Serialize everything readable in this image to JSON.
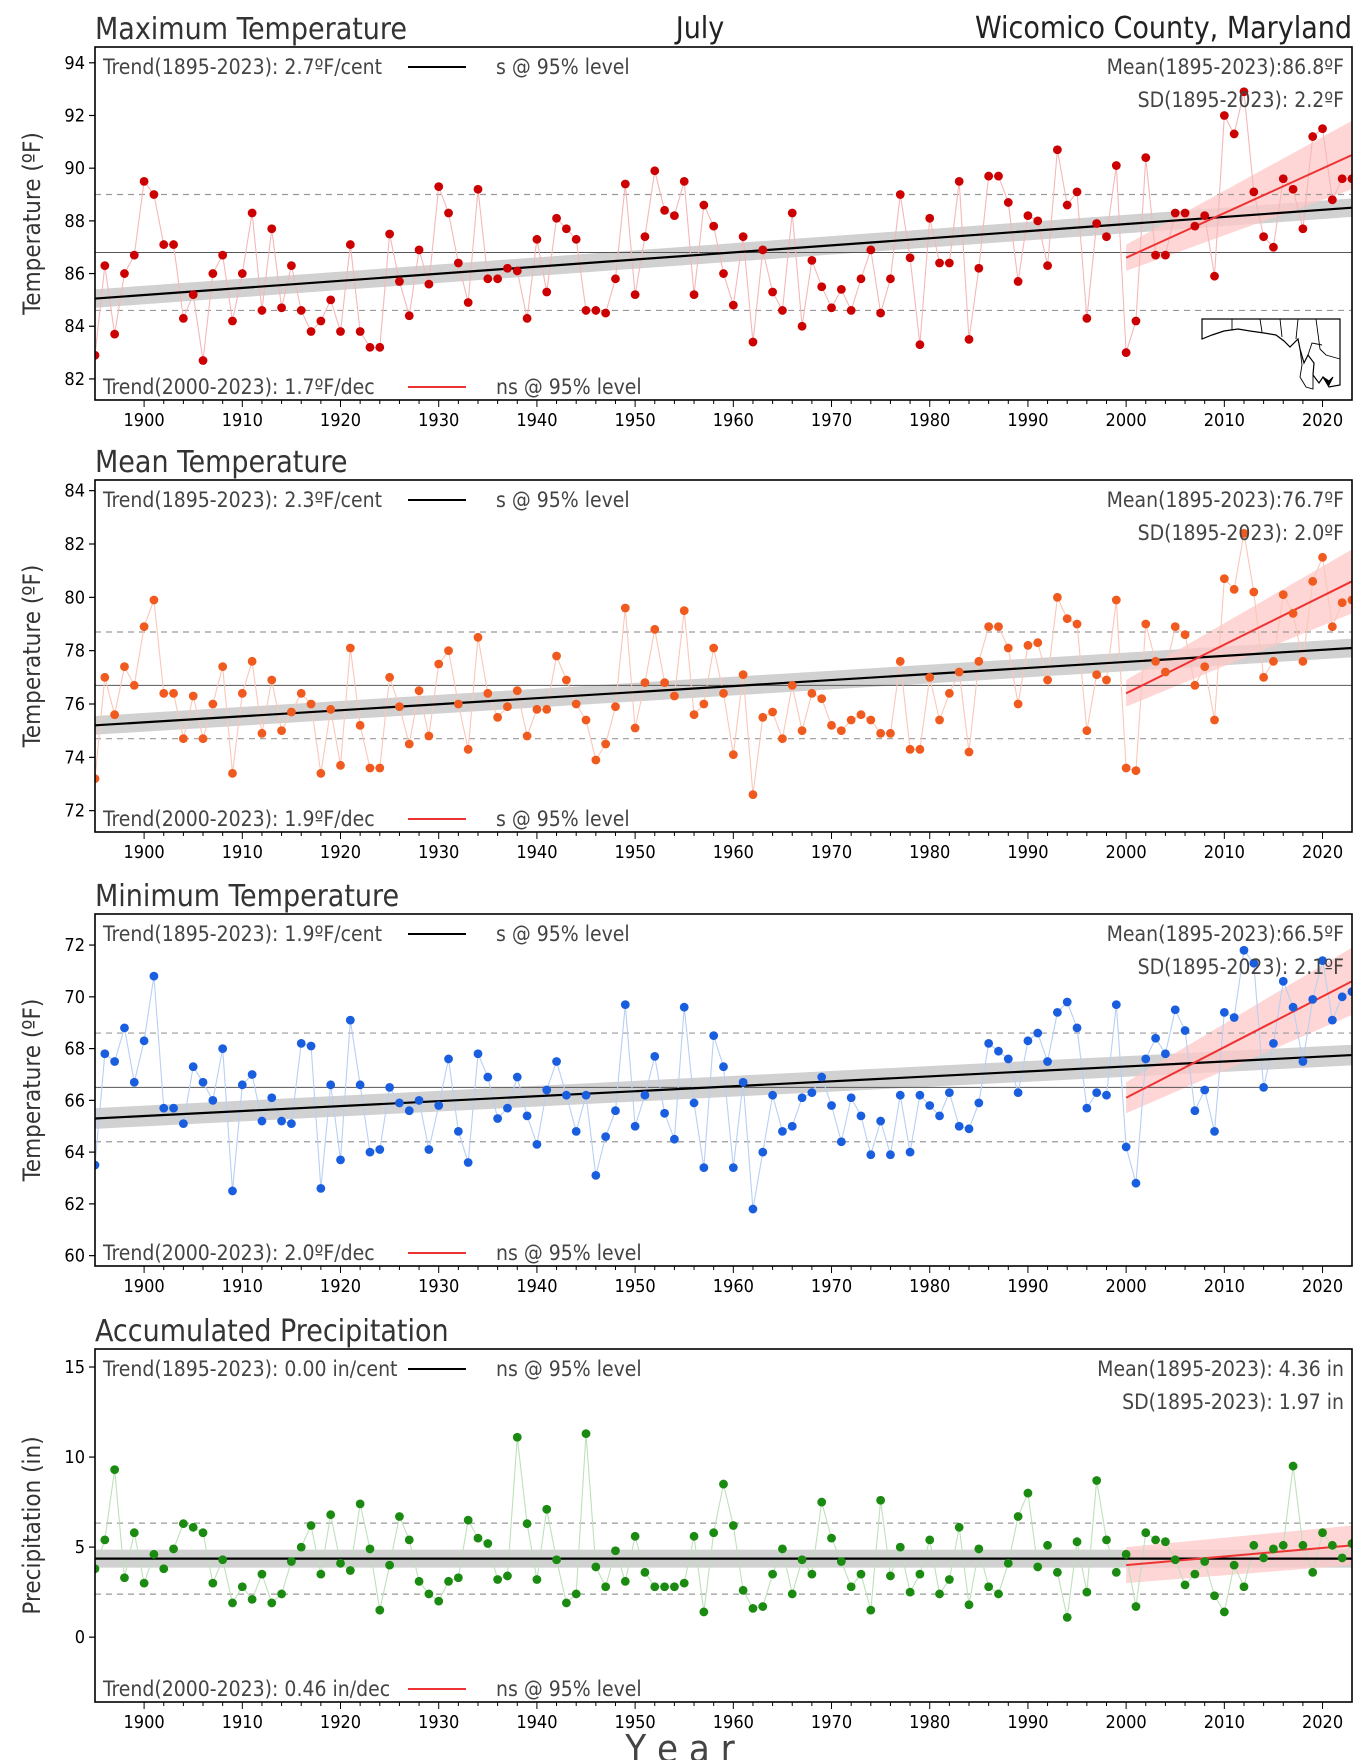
{
  "header": {
    "month": "July",
    "region": "Wicomico County, Maryland"
  },
  "colors": {
    "long_trend": "#000000",
    "short_trend": "#ee3333",
    "band_long": "#cccccc",
    "band_short": "#ffc8c8",
    "grid_dash": "#999999"
  },
  "xaxis": {
    "label": "Y e a r",
    "ticks": [
      1900,
      1910,
      1920,
      1930,
      1940,
      1950,
      1960,
      1970,
      1980,
      1990,
      2000,
      2010,
      2020
    ],
    "xlim": [
      1895,
      2023
    ]
  },
  "chart_data": [
    {
      "type": "scatter",
      "title": "Maximum Temperature",
      "ylabel": "Temperature (ºF)",
      "ylim": [
        81.2,
        94.6
      ],
      "yticks": [
        82,
        84,
        86,
        88,
        90,
        92,
        94
      ],
      "color": "#cc0000",
      "line_color": "#f4b8b8",
      "mean": 86.8,
      "sd": 2.2,
      "mean_text": "Mean(1895-2023):86.8ºF",
      "sd_text": "SD(1895-2023): 2.2ºF",
      "trend_long": {
        "text": "Trend(1895-2023):  2.7ºF/cent",
        "sig": "s @ 95% level",
        "start": 85.05,
        "end": 88.5,
        "band": 0.35
      },
      "trend_short": {
        "text": "Trend(2000-2023):  1.7ºF/dec",
        "sig": "ns @ 95% level",
        "start": 86.6,
        "end": 90.5,
        "band_start": 0.5,
        "band_end": 1.3
      },
      "x": [
        1895,
        1896,
        1897,
        1898,
        1899,
        1900,
        1901,
        1902,
        1903,
        1904,
        1905,
        1906,
        1907,
        1908,
        1909,
        1910,
        1911,
        1912,
        1913,
        1914,
        1915,
        1916,
        1917,
        1918,
        1919,
        1920,
        1921,
        1922,
        1923,
        1924,
        1925,
        1926,
        1927,
        1928,
        1929,
        1930,
        1931,
        1932,
        1933,
        1934,
        1935,
        1936,
        1937,
        1938,
        1939,
        1940,
        1941,
        1942,
        1943,
        1944,
        1945,
        1946,
        1947,
        1948,
        1949,
        1950,
        1951,
        1952,
        1953,
        1954,
        1955,
        1956,
        1957,
        1958,
        1959,
        1960,
        1961,
        1962,
        1963,
        1964,
        1965,
        1966,
        1967,
        1968,
        1969,
        1970,
        1971,
        1972,
        1973,
        1974,
        1975,
        1976,
        1977,
        1978,
        1979,
        1980,
        1981,
        1982,
        1983,
        1984,
        1985,
        1986,
        1987,
        1988,
        1989,
        1990,
        1991,
        1992,
        1993,
        1994,
        1995,
        1996,
        1997,
        1998,
        1999,
        2000,
        2001,
        2002,
        2003,
        2004,
        2005,
        2006,
        2007,
        2008,
        2009,
        2010,
        2011,
        2012,
        2013,
        2014,
        2015,
        2016,
        2017,
        2018,
        2019,
        2020,
        2021,
        2022,
        2023
      ],
      "values": [
        82.9,
        86.3,
        83.7,
        86.0,
        86.7,
        89.5,
        89.0,
        87.1,
        87.1,
        84.3,
        85.2,
        82.7,
        86.0,
        86.7,
        84.2,
        86.0,
        88.3,
        84.6,
        87.7,
        84.7,
        86.3,
        84.6,
        83.8,
        84.2,
        85.0,
        83.8,
        87.1,
        83.8,
        83.2,
        83.2,
        87.5,
        85.7,
        84.4,
        86.9,
        85.6,
        89.3,
        88.3,
        86.4,
        84.9,
        89.2,
        85.8,
        85.8,
        86.2,
        86.1,
        84.3,
        87.3,
        85.3,
        88.1,
        87.7,
        87.3,
        84.6,
        84.6,
        84.5,
        85.8,
        89.4,
        85.2,
        87.4,
        89.9,
        88.4,
        88.2,
        89.5,
        85.2,
        88.6,
        87.8,
        86.0,
        84.8,
        87.4,
        83.4,
        86.9,
        85.3,
        84.6,
        88.3,
        84.0,
        86.5,
        85.5,
        84.7,
        85.4,
        84.6,
        85.8,
        86.9,
        84.5,
        85.8,
        89.0,
        86.6,
        83.3,
        88.1,
        86.4,
        86.4,
        89.5,
        83.5,
        86.2,
        89.7,
        89.7,
        88.7,
        85.7,
        88.2,
        88.0,
        86.3,
        90.7,
        88.6,
        89.1,
        84.3,
        87.9,
        87.4,
        90.1,
        83.0,
        84.2,
        90.4,
        86.7,
        86.7,
        88.3,
        88.3,
        87.8,
        88.2,
        85.9,
        92.0,
        91.3,
        92.9,
        89.1,
        87.4,
        87.0,
        89.6,
        89.2,
        87.7,
        91.2,
        91.5,
        88.8,
        89.6,
        89.6
      ]
    },
    {
      "type": "scatter",
      "title": "Mean Temperature",
      "ylabel": "Temperature (ºF)",
      "ylim": [
        71.2,
        84.4
      ],
      "yticks": [
        72,
        74,
        76,
        78,
        80,
        82,
        84
      ],
      "color": "#f05a1e",
      "line_color": "#f9c8b8",
      "mean": 76.7,
      "sd": 2.0,
      "mean_text": "Mean(1895-2023):76.7ºF",
      "sd_text": "SD(1895-2023): 2.0ºF",
      "trend_long": {
        "text": "Trend(1895-2023):  2.3ºF/cent",
        "sig": "s @ 95% level",
        "start": 75.2,
        "end": 78.1,
        "band": 0.35
      },
      "trend_short": {
        "text": "Trend(2000-2023):  1.9ºF/dec",
        "sig": "s @ 95% level",
        "start": 76.4,
        "end": 80.6,
        "band_start": 0.5,
        "band_end": 1.2
      },
      "x": [
        1895,
        1896,
        1897,
        1898,
        1899,
        1900,
        1901,
        1902,
        1903,
        1904,
        1905,
        1906,
        1907,
        1908,
        1909,
        1910,
        1911,
        1912,
        1913,
        1914,
        1915,
        1916,
        1917,
        1918,
        1919,
        1920,
        1921,
        1922,
        1923,
        1924,
        1925,
        1926,
        1927,
        1928,
        1929,
        1930,
        1931,
        1932,
        1933,
        1934,
        1935,
        1936,
        1937,
        1938,
        1939,
        1940,
        1941,
        1942,
        1943,
        1944,
        1945,
        1946,
        1947,
        1948,
        1949,
        1950,
        1951,
        1952,
        1953,
        1954,
        1955,
        1956,
        1957,
        1958,
        1959,
        1960,
        1961,
        1962,
        1963,
        1964,
        1965,
        1966,
        1967,
        1968,
        1969,
        1970,
        1971,
        1972,
        1973,
        1974,
        1975,
        1976,
        1977,
        1978,
        1979,
        1980,
        1981,
        1982,
        1983,
        1984,
        1985,
        1986,
        1987,
        1988,
        1989,
        1990,
        1991,
        1992,
        1993,
        1994,
        1995,
        1996,
        1997,
        1998,
        1999,
        2000,
        2001,
        2002,
        2003,
        2004,
        2005,
        2006,
        2007,
        2008,
        2009,
        2010,
        2011,
        2012,
        2013,
        2014,
        2015,
        2016,
        2017,
        2018,
        2019,
        2020,
        2021,
        2022,
        2023
      ],
      "values": [
        73.2,
        77.0,
        75.6,
        77.4,
        76.7,
        78.9,
        79.9,
        76.4,
        76.4,
        74.7,
        76.3,
        74.7,
        76.0,
        77.4,
        73.4,
        76.4,
        77.6,
        74.9,
        76.9,
        75.0,
        75.7,
        76.4,
        76.0,
        73.4,
        75.8,
        73.7,
        78.1,
        75.2,
        73.6,
        73.6,
        77.0,
        75.9,
        74.5,
        76.5,
        74.8,
        77.5,
        78.0,
        76.0,
        74.3,
        78.5,
        76.4,
        75.5,
        75.9,
        76.5,
        74.8,
        75.8,
        75.8,
        77.8,
        76.9,
        76.0,
        75.4,
        73.9,
        74.5,
        75.9,
        79.6,
        75.1,
        76.8,
        78.8,
        76.8,
        76.3,
        79.5,
        75.6,
        76.0,
        78.1,
        76.4,
        74.1,
        77.1,
        72.6,
        75.5,
        75.7,
        74.7,
        76.7,
        75.0,
        76.4,
        76.2,
        75.2,
        75.0,
        75.4,
        75.6,
        75.4,
        74.9,
        74.9,
        77.6,
        74.3,
        74.3,
        77.0,
        75.4,
        76.4,
        77.2,
        74.2,
        77.6,
        78.9,
        78.9,
        78.1,
        76.0,
        78.2,
        78.3,
        76.9,
        80.0,
        79.2,
        79.0,
        75.0,
        77.1,
        76.9,
        79.9,
        73.6,
        73.5,
        79.0,
        77.6,
        77.2,
        78.9,
        78.6,
        76.7,
        77.4,
        75.4,
        80.7,
        80.3,
        82.4,
        80.2,
        77.0,
        77.6,
        80.1,
        79.4,
        77.6,
        80.6,
        81.5,
        78.9,
        79.8,
        79.9
      ]
    },
    {
      "type": "scatter",
      "title": "Minimum Temperature",
      "ylabel": "Temperature (ºF)",
      "ylim": [
        59.6,
        73.2
      ],
      "yticks": [
        60,
        62,
        64,
        66,
        68,
        70,
        72
      ],
      "color": "#1a5ee0",
      "line_color": "#b8d0f4",
      "mean": 66.5,
      "sd": 2.1,
      "mean_text": "Mean(1895-2023):66.5ºF",
      "sd_text": "SD(1895-2023): 2.1ºF",
      "trend_long": {
        "text": "Trend(1895-2023):  1.9ºF/cent",
        "sig": "s @ 95% level",
        "start": 65.3,
        "end": 67.75,
        "band": 0.4
      },
      "trend_short": {
        "text": "Trend(2000-2023):  2.0ºF/dec",
        "sig": "ns @ 95% level",
        "start": 66.1,
        "end": 70.6,
        "band_start": 0.6,
        "band_end": 1.3
      },
      "x": [
        1895,
        1896,
        1897,
        1898,
        1899,
        1900,
        1901,
        1902,
        1903,
        1904,
        1905,
        1906,
        1907,
        1908,
        1909,
        1910,
        1911,
        1912,
        1913,
        1914,
        1915,
        1916,
        1917,
        1918,
        1919,
        1920,
        1921,
        1922,
        1923,
        1924,
        1925,
        1926,
        1927,
        1928,
        1929,
        1930,
        1931,
        1932,
        1933,
        1934,
        1935,
        1936,
        1937,
        1938,
        1939,
        1940,
        1941,
        1942,
        1943,
        1944,
        1945,
        1946,
        1947,
        1948,
        1949,
        1950,
        1951,
        1952,
        1953,
        1954,
        1955,
        1956,
        1957,
        1958,
        1959,
        1960,
        1961,
        1962,
        1963,
        1964,
        1965,
        1966,
        1967,
        1968,
        1969,
        1970,
        1971,
        1972,
        1973,
        1974,
        1975,
        1976,
        1977,
        1978,
        1979,
        1980,
        1981,
        1982,
        1983,
        1984,
        1985,
        1986,
        1987,
        1988,
        1989,
        1990,
        1991,
        1992,
        1993,
        1994,
        1995,
        1996,
        1997,
        1998,
        1999,
        2000,
        2001,
        2002,
        2003,
        2004,
        2005,
        2006,
        2007,
        2008,
        2009,
        2010,
        2011,
        2012,
        2013,
        2014,
        2015,
        2016,
        2017,
        2018,
        2019,
        2020,
        2021,
        2022,
        2023
      ],
      "values": [
        63.5,
        67.8,
        67.5,
        68.8,
        66.7,
        68.3,
        70.8,
        65.7,
        65.7,
        65.1,
        67.3,
        66.7,
        66.0,
        68.0,
        62.5,
        66.6,
        67.0,
        65.2,
        66.1,
        65.2,
        65.1,
        68.2,
        68.1,
        62.6,
        66.6,
        63.7,
        69.1,
        66.6,
        64.0,
        64.1,
        66.5,
        65.9,
        65.6,
        66.0,
        64.1,
        65.8,
        67.6,
        64.8,
        63.6,
        67.8,
        66.9,
        65.3,
        65.7,
        66.9,
        65.4,
        64.3,
        66.4,
        67.5,
        66.2,
        64.8,
        66.2,
        63.1,
        64.6,
        65.6,
        69.7,
        65.0,
        66.2,
        67.7,
        65.5,
        64.5,
        69.6,
        65.9,
        63.4,
        68.5,
        67.3,
        63.4,
        66.7,
        61.8,
        64.0,
        66.2,
        64.8,
        65.0,
        66.1,
        66.3,
        66.9,
        65.8,
        64.4,
        66.1,
        65.4,
        63.9,
        65.2,
        63.9,
        66.2,
        64.0,
        66.2,
        65.8,
        65.4,
        66.3,
        65.0,
        64.9,
        65.9,
        68.2,
        67.9,
        67.6,
        66.3,
        68.3,
        68.6,
        67.5,
        69.4,
        69.8,
        68.8,
        65.7,
        66.3,
        66.2,
        69.7,
        64.2,
        62.8,
        67.6,
        68.4,
        67.8,
        69.5,
        68.7,
        65.6,
        66.4,
        64.8,
        69.4,
        69.2,
        71.8,
        71.3,
        66.5,
        68.2,
        70.6,
        69.6,
        67.5,
        69.9,
        71.4,
        69.1,
        70.0,
        70.2
      ]
    },
    {
      "type": "scatter",
      "title": "Accumulated Precipitation",
      "ylabel": "Precipitation (in)",
      "ylim": [
        -3.6,
        16.0
      ],
      "yticks": [
        0,
        5,
        10,
        15
      ],
      "color": "#1a8a10",
      "line_color": "#bfe0bc",
      "mean": 4.36,
      "sd": 1.97,
      "mean_text": "Mean(1895-2023): 4.36 in",
      "sd_text": "SD(1895-2023): 1.97 in",
      "trend_long": {
        "text": "Trend(1895-2023):  0.00 in/cent",
        "sig": "ns @ 95% level",
        "start": 4.36,
        "end": 4.36,
        "band": 0.5
      },
      "trend_short": {
        "text": "Trend(2000-2023):  0.46 in/dec",
        "sig": "ns @ 95% level",
        "start": 4.0,
        "end": 5.1,
        "band_start": 1.0,
        "band_end": 1.1
      },
      "x": [
        1895,
        1896,
        1897,
        1898,
        1899,
        1900,
        1901,
        1902,
        1903,
        1904,
        1905,
        1906,
        1907,
        1908,
        1909,
        1910,
        1911,
        1912,
        1913,
        1914,
        1915,
        1916,
        1917,
        1918,
        1919,
        1920,
        1921,
        1922,
        1923,
        1924,
        1925,
        1926,
        1927,
        1928,
        1929,
        1930,
        1931,
        1932,
        1933,
        1934,
        1935,
        1936,
        1937,
        1938,
        1939,
        1940,
        1941,
        1942,
        1943,
        1944,
        1945,
        1946,
        1947,
        1948,
        1949,
        1950,
        1951,
        1952,
        1953,
        1954,
        1955,
        1956,
        1957,
        1958,
        1959,
        1960,
        1961,
        1962,
        1963,
        1964,
        1965,
        1966,
        1967,
        1968,
        1969,
        1970,
        1971,
        1972,
        1973,
        1974,
        1975,
        1976,
        1977,
        1978,
        1979,
        1980,
        1981,
        1982,
        1983,
        1984,
        1985,
        1986,
        1987,
        1988,
        1989,
        1990,
        1991,
        1992,
        1993,
        1994,
        1995,
        1996,
        1997,
        1998,
        1999,
        2000,
        2001,
        2002,
        2003,
        2004,
        2005,
        2006,
        2007,
        2008,
        2009,
        2010,
        2011,
        2012,
        2013,
        2014,
        2015,
        2016,
        2017,
        2018,
        2019,
        2020,
        2021,
        2022,
        2023
      ],
      "values": [
        3.8,
        5.4,
        9.3,
        3.3,
        5.8,
        3.0,
        4.6,
        3.8,
        4.9,
        6.3,
        6.1,
        5.8,
        3.0,
        4.3,
        1.9,
        2.8,
        2.1,
        3.5,
        1.9,
        2.4,
        4.2,
        5.0,
        6.2,
        3.5,
        6.8,
        4.1,
        3.7,
        7.4,
        4.9,
        1.5,
        4.0,
        6.7,
        5.4,
        3.1,
        2.4,
        2.0,
        3.1,
        3.3,
        6.5,
        5.5,
        5.2,
        3.2,
        3.4,
        11.1,
        6.3,
        3.2,
        7.1,
        4.3,
        1.9,
        2.4,
        11.3,
        3.9,
        2.8,
        4.8,
        3.1,
        5.6,
        3.6,
        2.8,
        2.8,
        2.8,
        3.0,
        5.6,
        1.4,
        5.8,
        8.5,
        6.2,
        2.6,
        1.6,
        1.7,
        3.5,
        4.9,
        2.4,
        4.3,
        3.5,
        7.5,
        5.5,
        4.2,
        2.8,
        3.5,
        1.5,
        7.6,
        3.4,
        5.0,
        2.5,
        3.5,
        5.4,
        2.4,
        3.2,
        6.1,
        1.8,
        4.9,
        2.8,
        2.4,
        4.1,
        6.7,
        8.0,
        3.9,
        5.1,
        3.6,
        1.1,
        5.3,
        2.5,
        8.7,
        5.4,
        3.6,
        4.6,
        1.7,
        5.8,
        5.4,
        5.3,
        4.3,
        2.9,
        3.5,
        4.2,
        2.3,
        1.4,
        4.0,
        2.8,
        5.1,
        4.4,
        4.9,
        5.1,
        9.5,
        5.1,
        3.6,
        5.8,
        5.1,
        4.4,
        5.2
      ]
    }
  ]
}
